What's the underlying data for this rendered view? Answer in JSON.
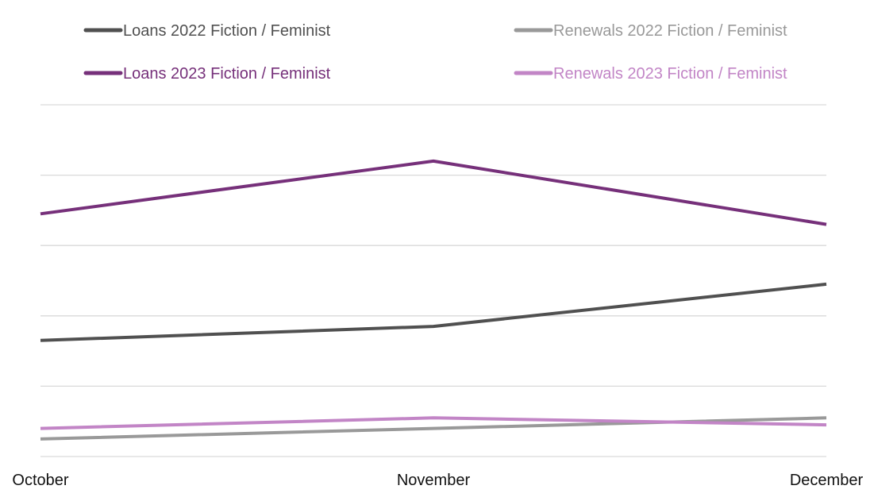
{
  "chart_data": {
    "type": "line",
    "title": "",
    "xlabel": "",
    "ylabel": "",
    "categories": [
      "October",
      "November",
      "December"
    ],
    "ylim": [
      0,
      100
    ],
    "grid": true,
    "legend_position": "top",
    "series": [
      {
        "name": "Loans 2022 Fiction / Feminist",
        "color": "#505050",
        "values": [
          33,
          37,
          49
        ]
      },
      {
        "name": "Renewals 2022 Fiction / Feminist",
        "color": "#999999",
        "values": [
          5,
          8,
          11
        ]
      },
      {
        "name": "Loans 2023 Fiction / Feminist",
        "color": "#76307a",
        "values": [
          69,
          84,
          66
        ]
      },
      {
        "name": "Renewals 2023 Fiction / Feminist",
        "color": "#c285c6",
        "values": [
          8,
          11,
          9
        ]
      }
    ]
  }
}
